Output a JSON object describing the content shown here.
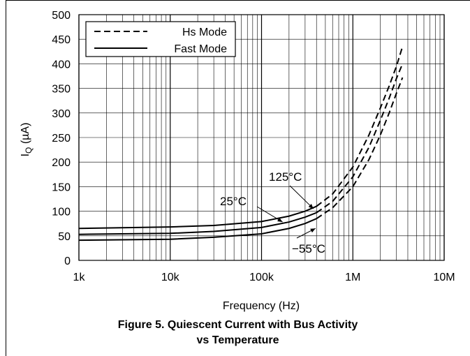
{
  "chart_data": {
    "type": "line",
    "xlabel": "Frequency (Hz)",
    "ylabel_main": "I",
    "ylabel_sub": "Q",
    "ylabel_unit": " (µA)",
    "x_scale": "log",
    "xlim": [
      1000,
      10000000
    ],
    "ylim": [
      0,
      500
    ],
    "x_tick_values": [
      1000,
      10000,
      100000,
      1000000,
      10000000
    ],
    "x_tick_labels": [
      "1k",
      "10k",
      "100k",
      "1M",
      "10M"
    ],
    "y_ticks": [
      0,
      50,
      100,
      150,
      200,
      250,
      300,
      350,
      400,
      450,
      500
    ],
    "grid": true,
    "legend": {
      "placement": "top-left",
      "entries": [
        {
          "label": "Hs Mode",
          "style": "dashed"
        },
        {
          "label": "Fast Mode",
          "style": "solid"
        }
      ]
    },
    "annotations": [
      {
        "text": "125°C",
        "target": [
          370000,
          105
        ]
      },
      {
        "text": "25°C",
        "target": [
          170000,
          78
        ]
      },
      {
        "text": "−55°C",
        "target": [
          390000,
          65
        ]
      }
    ],
    "series": [
      {
        "style": "solid",
        "x": [
          1000,
          10000,
          30000,
          100000,
          200000,
          300000,
          400000
        ],
        "y": [
          65,
          68,
          71,
          79,
          90,
          100,
          110
        ]
      },
      {
        "style": "solid",
        "x": [
          1000,
          10000,
          30000,
          100000,
          200000,
          300000,
          400000
        ],
        "y": [
          53,
          55,
          59,
          67,
          78,
          88,
          97
        ]
      },
      {
        "style": "solid",
        "x": [
          1000,
          10000,
          30000,
          100000,
          200000,
          300000,
          400000
        ],
        "y": [
          41,
          43,
          47,
          54,
          65,
          75,
          85
        ]
      },
      {
        "style": "dashed",
        "x": [
          400000,
          600000,
          1000000,
          1500000,
          2000000,
          2500000,
          3000000,
          3500000
        ],
        "y": [
          110,
          135,
          190,
          255,
          310,
          355,
          395,
          435
        ]
      },
      {
        "style": "dashed",
        "x": [
          400000,
          600000,
          1000000,
          1500000,
          2000000,
          2500000,
          3000000,
          3500000
        ],
        "y": [
          97,
          120,
          170,
          230,
          285,
          330,
          370,
          400
        ]
      },
      {
        "style": "dashed",
        "x": [
          400000,
          600000,
          1000000,
          1500000,
          2000000,
          2500000,
          3000000,
          3500000
        ],
        "y": [
          85,
          107,
          150,
          205,
          255,
          300,
          340,
          372
        ]
      }
    ]
  },
  "caption": {
    "line1": "Figure 5. Quiescent Current with Bus Activity",
    "line2": "vs Temperature"
  }
}
